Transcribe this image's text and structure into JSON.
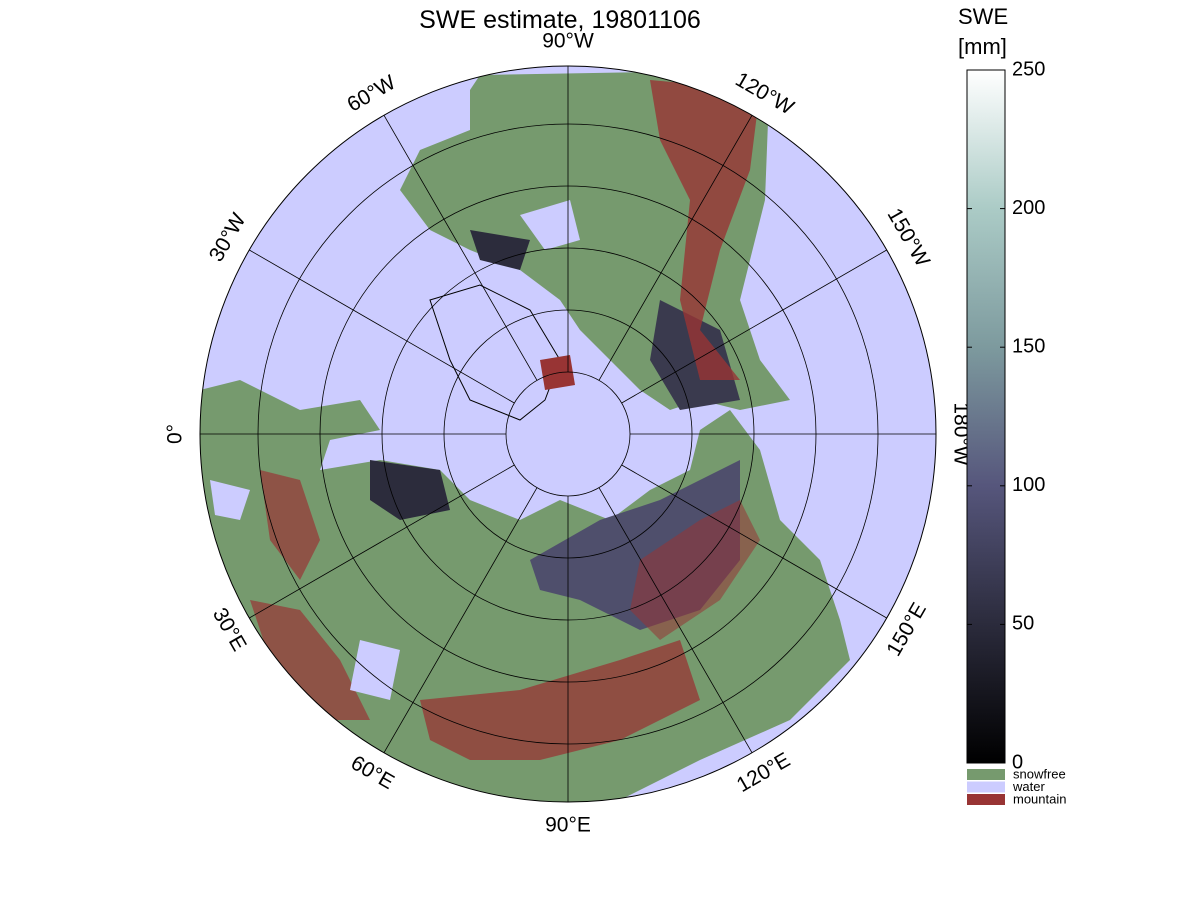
{
  "title": "SWE estimate, 19801106",
  "meridian_labels": [
    "90°W",
    "120°W",
    "150°W",
    "180°W",
    "150°E",
    "120°E",
    "90°E",
    "60°E",
    "30°E",
    "0°",
    "30°W",
    "60°W"
  ],
  "colorbar": {
    "label": [
      "SWE",
      "[mm]"
    ],
    "lim": [
      0,
      250
    ],
    "ticks": [
      0,
      50,
      100,
      150,
      200,
      250
    ]
  },
  "legend": [
    {
      "name": "snowfree",
      "color": "#769a6e"
    },
    {
      "name": "water",
      "color": "#ccccff"
    },
    {
      "name": "mountain",
      "color": "#983434"
    }
  ]
}
